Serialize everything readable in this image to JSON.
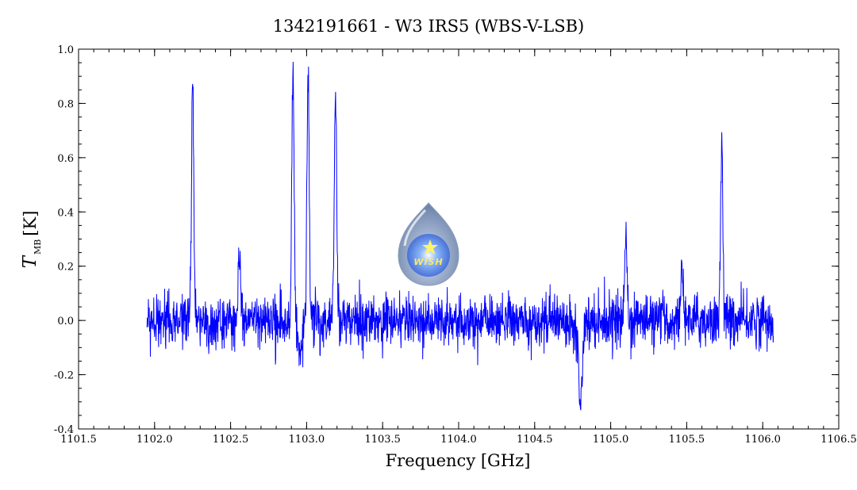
{
  "chart_data": {
    "type": "line",
    "title": "1342191661 - W3 IRS5 (WBS-V-LSB)",
    "xlabel": "Frequency [GHz]",
    "ylabel": {
      "symbol": "T",
      "subscript": "MB",
      "unit": "[K]"
    },
    "xlim": [
      1101.5,
      1106.5
    ],
    "ylim": [
      -0.4,
      1.0
    ],
    "x_ticks": [
      "1101.5",
      "1102.0",
      "1102.5",
      "1103.0",
      "1103.5",
      "1104.0",
      "1104.5",
      "1105.0",
      "1105.5",
      "1106.0",
      "1106.5"
    ],
    "y_ticks": [
      "-0.4",
      "-0.2",
      "0.0",
      "0.2",
      "0.4",
      "0.6",
      "0.8",
      "1.0"
    ],
    "grid": false,
    "line_color": "#0000ff",
    "x_range_of_data": [
      1101.95,
      1106.07
    ],
    "noise_rms": 0.06,
    "features": [
      {
        "x": 1102.25,
        "y": 0.87,
        "kind": "emission"
      },
      {
        "x": 1102.56,
        "y": 0.26,
        "kind": "emission"
      },
      {
        "x": 1102.91,
        "y": 0.91,
        "kind": "emission"
      },
      {
        "x": 1102.96,
        "y": -0.13,
        "kind": "absorption"
      },
      {
        "x": 1103.01,
        "y": 0.91,
        "kind": "emission"
      },
      {
        "x": 1103.19,
        "y": 0.84,
        "kind": "emission"
      },
      {
        "x": 1104.8,
        "y": -0.29,
        "kind": "absorption"
      },
      {
        "x": 1105.1,
        "y": 0.33,
        "kind": "emission"
      },
      {
        "x": 1105.47,
        "y": 0.21,
        "kind": "emission"
      },
      {
        "x": 1105.73,
        "y": 0.66,
        "kind": "emission"
      }
    ]
  },
  "logo": {
    "text": "WISH",
    "name": "wish-logo"
  }
}
